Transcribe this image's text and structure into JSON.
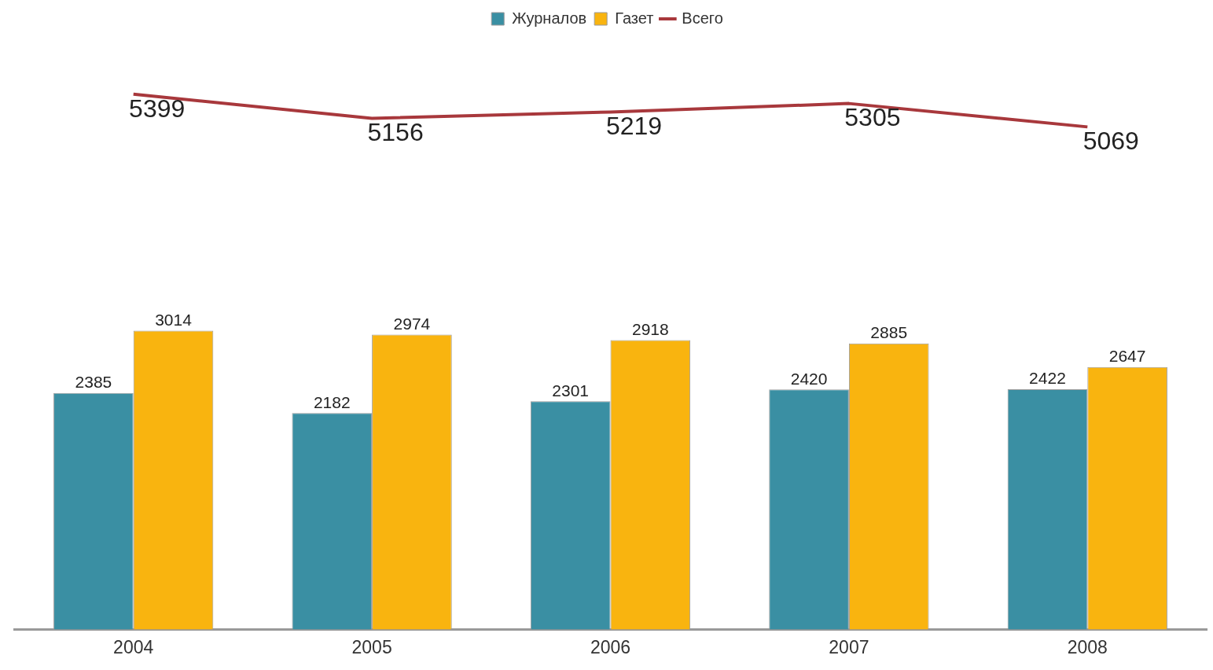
{
  "chart_data": {
    "type": "bar",
    "categories": [
      "2004",
      "2005",
      "2006",
      "2007",
      "2008"
    ],
    "series": [
      {
        "name": "Журналов",
        "color": "#3a8fa3",
        "values": [
          2385,
          2182,
          2301,
          2420,
          2422
        ]
      },
      {
        "name": "Газет",
        "color": "#f9b40f",
        "values": [
          3014,
          2974,
          2918,
          2885,
          2647
        ]
      },
      {
        "name": "Всего",
        "type": "line",
        "color": "#a8383c",
        "values": [
          5399,
          5156,
          5219,
          5305,
          5069
        ]
      }
    ],
    "tick_labels": "x",
    "data_labels": true,
    "legend": "top",
    "grid": false,
    "marker": "none"
  }
}
